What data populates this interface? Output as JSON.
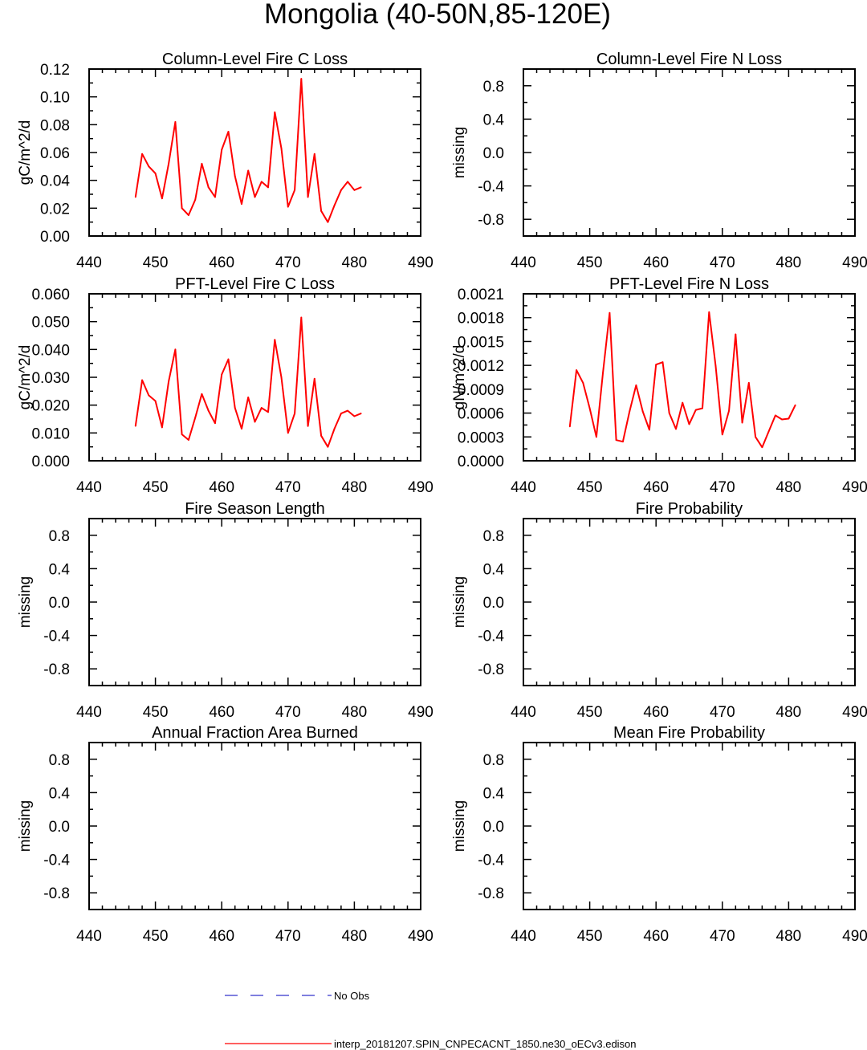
{
  "title": "Mongolia (40-50N,85-120E)",
  "colors": {
    "model": "#ff0000",
    "obs": "#3333cc",
    "axis": "#000000"
  },
  "legend": [
    {
      "label": "No Obs",
      "color": "#3333cc",
      "style": "dashed"
    },
    {
      "label": "interp_20181207.SPIN_CNPECACNT_1850.ne30_oECv3.edison",
      "color": "#ff0000",
      "style": "solid"
    }
  ],
  "chart_data": [
    {
      "type": "line",
      "title": "Column-Level Fire C Loss",
      "ylabel": "gC/m^2/d",
      "xlim": [
        440,
        490
      ],
      "ylim": [
        0,
        0.12
      ],
      "xticks": [
        "440",
        "450",
        "460",
        "470",
        "480",
        "490"
      ],
      "yticks": [
        "0.00",
        "0.02",
        "0.04",
        "0.06",
        "0.08",
        "0.10",
        "0.12"
      ],
      "x": [
        447,
        448,
        449,
        450,
        451,
        452,
        453,
        454,
        455,
        456,
        457,
        458,
        459,
        460,
        461,
        462,
        463,
        464,
        465,
        466,
        467,
        468,
        469,
        470,
        471,
        472,
        473,
        474,
        475,
        476,
        477,
        478,
        479,
        480,
        481
      ],
      "series": [
        {
          "values": [
            0.028,
            0.059,
            0.05,
            0.045,
            0.027,
            0.052,
            0.082,
            0.02,
            0.015,
            0.026,
            0.052,
            0.035,
            0.028,
            0.062,
            0.075,
            0.043,
            0.023,
            0.047,
            0.028,
            0.039,
            0.035,
            0.089,
            0.063,
            0.021,
            0.033,
            0.113,
            0.028,
            0.059,
            0.018,
            0.01,
            0.022,
            0.033,
            0.039,
            0.033,
            0.035
          ]
        }
      ]
    },
    {
      "type": "line",
      "title": "Column-Level Fire N Loss",
      "ylabel": "missing",
      "xlim": [
        440,
        490
      ],
      "ylim": [
        -1,
        1
      ],
      "xticks": [
        "440",
        "450",
        "460",
        "470",
        "480",
        "490"
      ],
      "yticks": [
        "-0.8",
        "-0.4",
        "0.0",
        "0.4",
        "0.8"
      ],
      "series": []
    },
    {
      "type": "line",
      "title": "PFT-Level Fire C Loss",
      "ylabel": "gC/m^2/d",
      "xlim": [
        440,
        490
      ],
      "ylim": [
        0,
        0.06
      ],
      "xticks": [
        "440",
        "450",
        "460",
        "470",
        "480",
        "490"
      ],
      "yticks": [
        "0.000",
        "0.010",
        "0.020",
        "0.030",
        "0.040",
        "0.050",
        "0.060"
      ],
      "x": [
        447,
        448,
        449,
        450,
        451,
        452,
        453,
        454,
        455,
        456,
        457,
        458,
        459,
        460,
        461,
        462,
        463,
        464,
        465,
        466,
        467,
        468,
        469,
        470,
        471,
        472,
        473,
        474,
        475,
        476,
        477,
        478,
        479,
        480,
        481
      ],
      "series": [
        {
          "values": [
            0.0125,
            0.029,
            0.0235,
            0.0215,
            0.012,
            0.0285,
            0.04,
            0.0095,
            0.0075,
            0.0155,
            0.024,
            0.018,
            0.0135,
            0.031,
            0.0365,
            0.019,
            0.0115,
            0.0228,
            0.014,
            0.019,
            0.0175,
            0.0435,
            0.03,
            0.01,
            0.017,
            0.0515,
            0.0125,
            0.0295,
            0.009,
            0.005,
            0.0115,
            0.017,
            0.018,
            0.016,
            0.017
          ]
        }
      ]
    },
    {
      "type": "line",
      "title": "PFT-Level Fire N Loss",
      "ylabel": "gN/m^2/d",
      "xlim": [
        440,
        490
      ],
      "ylim": [
        0,
        0.0021
      ],
      "xticks": [
        "440",
        "450",
        "460",
        "470",
        "480",
        "490"
      ],
      "yticks": [
        "0.0000",
        "0.0003",
        "0.0006",
        "0.0009",
        "0.0012",
        "0.0015",
        "0.0018",
        "0.0021"
      ],
      "x": [
        447,
        448,
        449,
        450,
        451,
        452,
        453,
        454,
        455,
        456,
        457,
        458,
        459,
        460,
        461,
        462,
        463,
        464,
        465,
        466,
        467,
        468,
        469,
        470,
        471,
        472,
        473,
        474,
        475,
        476,
        477,
        478,
        479,
        480,
        481
      ],
      "series": [
        {
          "values": [
            0.00043,
            0.00114,
            0.00098,
            0.00066,
            0.0003,
            0.00111,
            0.00186,
            0.00026,
            0.00024,
            0.00062,
            0.00095,
            0.00062,
            0.00039,
            0.00121,
            0.00124,
            0.0006,
            0.0004,
            0.00073,
            0.00046,
            0.00064,
            0.00066,
            0.00187,
            0.00119,
            0.00033,
            0.00063,
            0.00159,
            0.00048,
            0.00098,
            0.0003,
            0.00017,
            0.00037,
            0.00057,
            0.00052,
            0.00053,
            0.0007
          ]
        }
      ]
    },
    {
      "type": "line",
      "title": "Fire Season Length",
      "ylabel": "missing",
      "xlim": [
        440,
        490
      ],
      "ylim": [
        -1,
        1
      ],
      "xticks": [
        "440",
        "450",
        "460",
        "470",
        "480",
        "490"
      ],
      "yticks": [
        "-0.8",
        "-0.4",
        "0.0",
        "0.4",
        "0.8"
      ],
      "series": []
    },
    {
      "type": "line",
      "title": "Fire Probability",
      "ylabel": "missing",
      "xlim": [
        440,
        490
      ],
      "ylim": [
        -1,
        1
      ],
      "xticks": [
        "440",
        "450",
        "460",
        "470",
        "480",
        "490"
      ],
      "yticks": [
        "-0.8",
        "-0.4",
        "0.0",
        "0.4",
        "0.8"
      ],
      "series": []
    },
    {
      "type": "line",
      "title": "Annual Fraction Area Burned",
      "ylabel": "missing",
      "xlim": [
        440,
        490
      ],
      "ylim": [
        -1,
        1
      ],
      "xticks": [
        "440",
        "450",
        "460",
        "470",
        "480",
        "490"
      ],
      "yticks": [
        "-0.8",
        "-0.4",
        "0.0",
        "0.4",
        "0.8"
      ],
      "series": []
    },
    {
      "type": "line",
      "title": "Mean Fire Probability",
      "ylabel": "missing",
      "xlim": [
        440,
        490
      ],
      "ylim": [
        -1,
        1
      ],
      "xticks": [
        "440",
        "450",
        "460",
        "470",
        "480",
        "490"
      ],
      "yticks": [
        "-0.8",
        "-0.4",
        "0.0",
        "0.4",
        "0.8"
      ],
      "series": []
    }
  ]
}
